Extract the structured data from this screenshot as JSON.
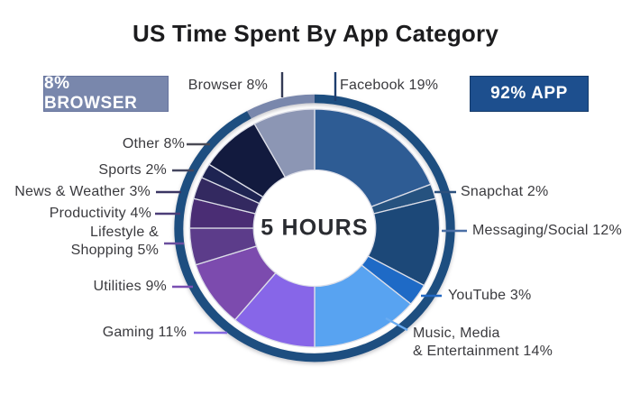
{
  "title": "US Time Spent By App Category",
  "badges": {
    "browser": {
      "label": "8% BROWSER",
      "bg": "#7987AC",
      "text_color": "#FFFFFF"
    },
    "app": {
      "label": "92% APP",
      "bg": "#1D4F8E",
      "text_color": "#FFFFFF"
    }
  },
  "chart_data": {
    "type": "pie",
    "subtype": "donut",
    "title": "US Time Spent By App Category",
    "center_label": "5 HOURS",
    "unit": "%",
    "slices": [
      {
        "id": "facebook",
        "label": "Facebook",
        "value": 19,
        "color": "#2E5C94",
        "connector": "#1E3E6E"
      },
      {
        "id": "snapchat",
        "label": "Snapchat",
        "value": 2,
        "color": "#26527F",
        "connector": "#2C517E"
      },
      {
        "id": "messaging-social",
        "label": "Messaging/Social",
        "value": 12,
        "color": "#1C4878",
        "connector": "#4A6FA5"
      },
      {
        "id": "youtube",
        "label": "YouTube",
        "value": 3,
        "color": "#1E6AC6",
        "connector": "#2268C2"
      },
      {
        "id": "music-media-entertainment",
        "label": "Music, Media\n& Entertainment",
        "value": 14,
        "color": "#58A3F1",
        "connector": "#6AACF2"
      },
      {
        "id": "gaming",
        "label": "Gaming",
        "value": 11,
        "color": "#8766E8",
        "connector": "#8468E0"
      },
      {
        "id": "utilities",
        "label": "Utilities",
        "value": 9,
        "color": "#7C4BAE",
        "connector": "#7A4FB2"
      },
      {
        "id": "lifestyle-shopping",
        "label": "Lifestyle &\nShopping",
        "value": 5,
        "color": "#5C3C8A",
        "connector": "#6A4E9E"
      },
      {
        "id": "productivity",
        "label": "Productivity",
        "value": 4,
        "color": "#4A2D74",
        "connector": "#4C3E78"
      },
      {
        "id": "news-weather",
        "label": "News & Weather",
        "value": 3,
        "color": "#332960",
        "connector": "#3A3563"
      },
      {
        "id": "sports",
        "label": "Sports",
        "value": 2,
        "color": "#1E2452",
        "connector": "#45475F"
      },
      {
        "id": "other",
        "label": "Other",
        "value": 8,
        "color": "#121A3E",
        "connector": "#4A4A55"
      },
      {
        "id": "browser",
        "label": "Browser",
        "value": 8,
        "color": "#8C96B4",
        "connector": "#333A55"
      }
    ],
    "outer_ring": {
      "segments": [
        {
          "label": "APP",
          "value": 92,
          "color": "#1D4E80"
        },
        {
          "label": "BROWSER",
          "value": 8,
          "color": "#7987AC"
        }
      ]
    }
  }
}
